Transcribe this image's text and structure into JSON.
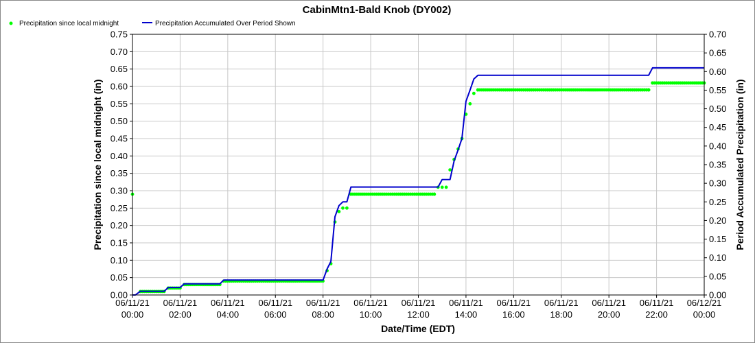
{
  "chart_data": {
    "type": "line",
    "title": "CabinMtn1-Bald Knob (DY002)",
    "xlabel": "Date/Time (EDT)",
    "ylabel_left": "Precipitation since local midnight (in)",
    "ylabel_right": "Period Accumulated Precipitation (in)",
    "xlim_hours": [
      0,
      24
    ],
    "ylim_left": [
      0,
      0.75
    ],
    "ylim_right": [
      0,
      0.7
    ],
    "grid": true,
    "legend_position": "top-left",
    "x_ticks": [
      {
        "date": "06/11/21",
        "time": "00:00"
      },
      {
        "date": "06/11/21",
        "time": "02:00"
      },
      {
        "date": "06/11/21",
        "time": "04:00"
      },
      {
        "date": "06/11/21",
        "time": "06:00"
      },
      {
        "date": "06/11/21",
        "time": "08:00"
      },
      {
        "date": "06/11/21",
        "time": "10:00"
      },
      {
        "date": "06/11/21",
        "time": "12:00"
      },
      {
        "date": "06/11/21",
        "time": "14:00"
      },
      {
        "date": "06/11/21",
        "time": "16:00"
      },
      {
        "date": "06/11/21",
        "time": "18:00"
      },
      {
        "date": "06/11/21",
        "time": "20:00"
      },
      {
        "date": "06/11/21",
        "time": "22:00"
      },
      {
        "date": "06/12/21",
        "time": "00:00"
      }
    ],
    "y_ticks_left": [
      "0.00",
      "0.05",
      "0.10",
      "0.15",
      "0.20",
      "0.25",
      "0.30",
      "0.35",
      "0.40",
      "0.45",
      "0.50",
      "0.55",
      "0.60",
      "0.65",
      "0.70",
      "0.75"
    ],
    "y_ticks_right": [
      "0.00",
      "0.05",
      "0.10",
      "0.15",
      "0.20",
      "0.25",
      "0.30",
      "0.35",
      "0.40",
      "0.45",
      "0.50",
      "0.55",
      "0.60",
      "0.65",
      "0.70"
    ],
    "series": [
      {
        "name": "Precipitation since local midnight",
        "axis": "left",
        "style": "dots",
        "color": "#00ff00",
        "segments": [
          {
            "start": 0.0,
            "end": 0.0,
            "value": 0.29
          },
          {
            "start": 0.33,
            "end": 1.33,
            "value": 0.01
          },
          {
            "start": 1.5,
            "end": 2.0,
            "value": 0.02
          },
          {
            "start": 2.17,
            "end": 3.67,
            "value": 0.03
          },
          {
            "start": 3.83,
            "end": 8.0,
            "value": 0.04
          }
        ],
        "points": [
          [
            8.17,
            0.07
          ],
          [
            8.33,
            0.09
          ],
          [
            8.5,
            0.21
          ],
          [
            8.67,
            0.24
          ],
          [
            8.83,
            0.25
          ],
          [
            9.0,
            0.25
          ],
          [
            9.17,
            0.29
          ],
          [
            12.67,
            0.29
          ],
          [
            12.83,
            0.31
          ],
          [
            13.0,
            0.31
          ],
          [
            13.17,
            0.31
          ],
          [
            13.33,
            0.36
          ],
          [
            13.5,
            0.39
          ],
          [
            13.67,
            0.42
          ],
          [
            13.83,
            0.45
          ],
          [
            14.0,
            0.52
          ],
          [
            14.17,
            0.55
          ],
          [
            14.33,
            0.58
          ],
          [
            14.5,
            0.59
          ],
          [
            21.67,
            0.59
          ],
          [
            21.83,
            0.61
          ],
          [
            24.0,
            0.61
          ]
        ],
        "fill_segments": [
          {
            "start": 9.17,
            "end": 12.67,
            "value": 0.29
          },
          {
            "start": 14.5,
            "end": 21.67,
            "value": 0.59
          },
          {
            "start": 21.83,
            "end": 24.0,
            "value": 0.61
          }
        ]
      },
      {
        "name": "Precipitation Accumulated Over Period Shown",
        "axis": "right",
        "style": "line",
        "color": "#0000cc",
        "x": [
          0.0,
          0.12,
          0.33,
          1.33,
          1.5,
          2.0,
          2.17,
          3.67,
          3.83,
          8.0,
          8.17,
          8.33,
          8.5,
          8.67,
          8.83,
          9.0,
          9.17,
          12.83,
          13.0,
          13.33,
          13.5,
          13.67,
          13.83,
          14.0,
          14.17,
          14.33,
          14.5,
          21.67,
          21.83,
          24.0
        ],
        "y": [
          0.0,
          0.0,
          0.01,
          0.01,
          0.02,
          0.02,
          0.03,
          0.03,
          0.04,
          0.04,
          0.07,
          0.09,
          0.21,
          0.24,
          0.25,
          0.25,
          0.29,
          0.29,
          0.31,
          0.31,
          0.36,
          0.39,
          0.42,
          0.52,
          0.55,
          0.58,
          0.59,
          0.59,
          0.61,
          0.61
        ]
      }
    ]
  }
}
